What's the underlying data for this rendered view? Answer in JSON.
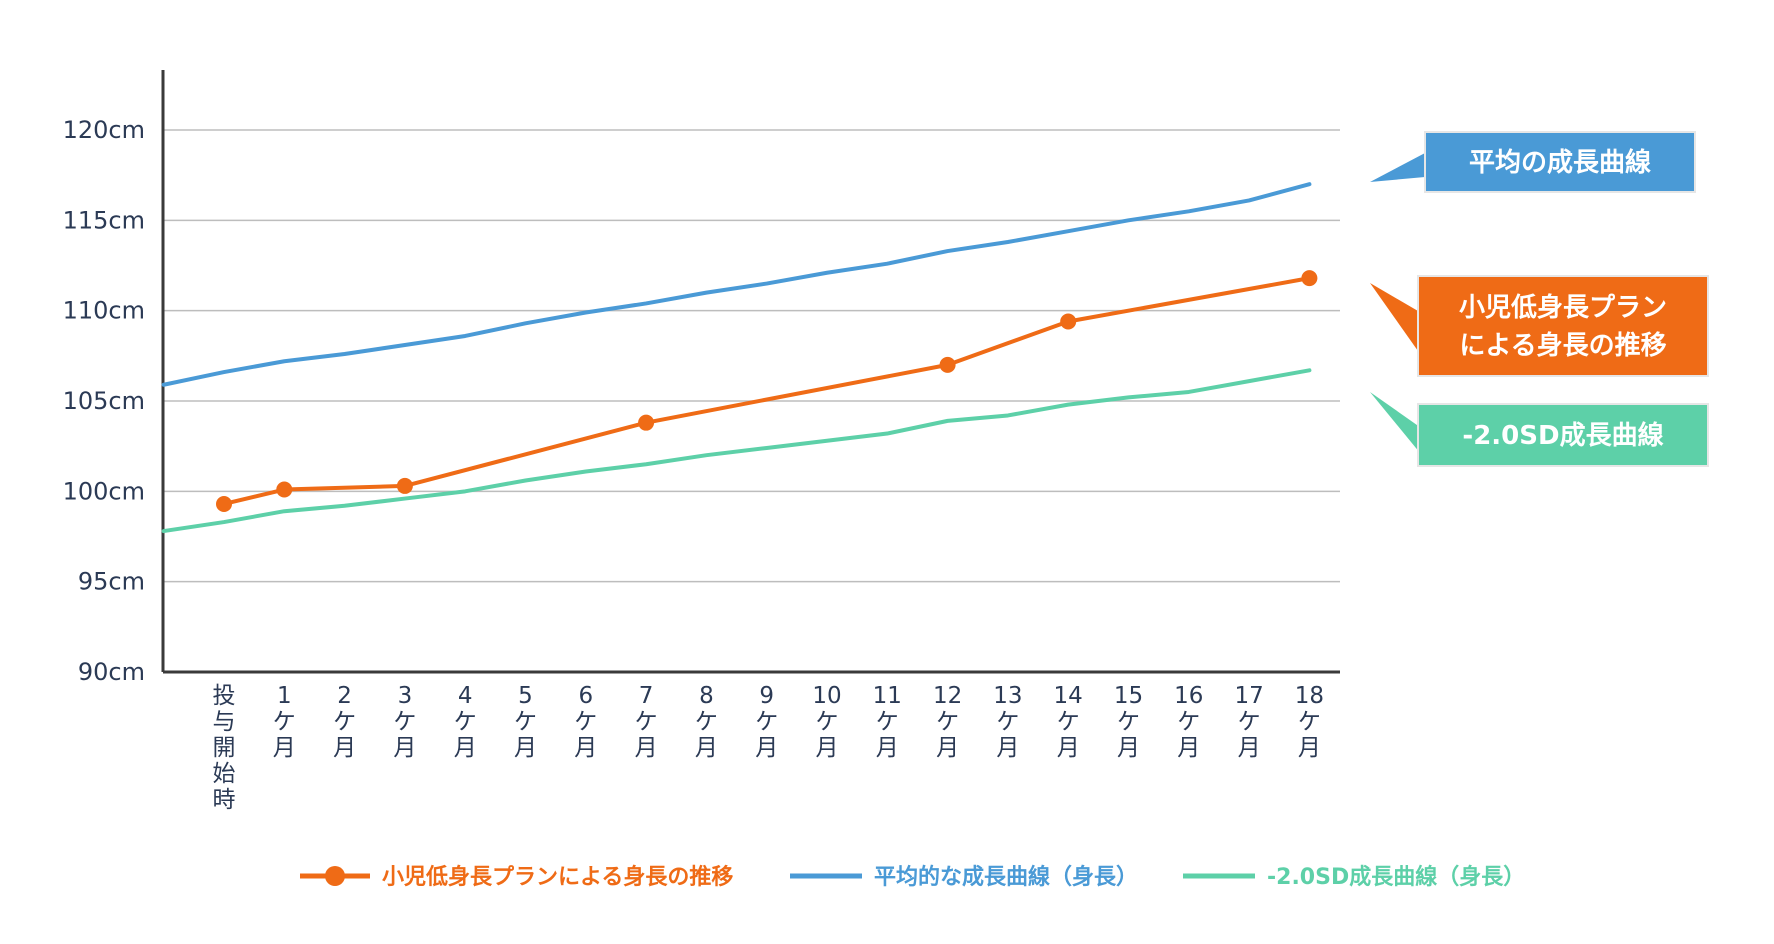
{
  "chart_data": {
    "type": "line",
    "title": "",
    "xlabel": "",
    "ylabel": "",
    "ylim": [
      90,
      123
    ],
    "grid": true,
    "y_ticks": [
      "90cm",
      "95cm",
      "100cm",
      "105cm",
      "110cm",
      "115cm",
      "120cm"
    ],
    "y_tick_values": [
      90,
      95,
      100,
      105,
      110,
      115,
      120
    ],
    "categories": [
      "投与開始時",
      "1ケ月",
      "2ケ月",
      "3ケ月",
      "4ケ月",
      "5ケ月",
      "6ケ月",
      "7ケ月",
      "8ケ月",
      "9ケ月",
      "10ケ月",
      "11ケ月",
      "12ケ月",
      "13ケ月",
      "14ケ月",
      "15ケ月",
      "16ケ月",
      "17ケ月",
      "18ケ月"
    ],
    "category_positions": [
      0,
      1,
      2,
      3,
      4,
      5,
      6,
      7,
      8,
      9,
      10,
      11,
      12,
      13,
      14,
      15,
      16,
      17,
      18
    ],
    "x_labels": [
      {
        "top": "",
        "lines": [
          "投",
          "与",
          "開",
          "始",
          "時"
        ]
      },
      {
        "top": "1",
        "lines": [
          "ケ",
          "月"
        ]
      },
      {
        "top": "2",
        "lines": [
          "ケ",
          "月"
        ]
      },
      {
        "top": "3",
        "lines": [
          "ケ",
          "月"
        ]
      },
      {
        "top": "4",
        "lines": [
          "ケ",
          "月"
        ]
      },
      {
        "top": "5",
        "lines": [
          "ケ",
          "月"
        ]
      },
      {
        "top": "6",
        "lines": [
          "ケ",
          "月"
        ]
      },
      {
        "top": "7",
        "lines": [
          "ケ",
          "月"
        ]
      },
      {
        "top": "8",
        "lines": [
          "ケ",
          "月"
        ]
      },
      {
        "top": "9",
        "lines": [
          "ケ",
          "月"
        ]
      },
      {
        "top": "10",
        "lines": [
          "ケ",
          "月"
        ]
      },
      {
        "top": "11",
        "lines": [
          "ケ",
          "月"
        ]
      },
      {
        "top": "12",
        "lines": [
          "ケ",
          "月"
        ]
      },
      {
        "top": "13",
        "lines": [
          "ケ",
          "月"
        ]
      },
      {
        "top": "14",
        "lines": [
          "ケ",
          "月"
        ]
      },
      {
        "top": "15",
        "lines": [
          "ケ",
          "月"
        ]
      },
      {
        "top": "16",
        "lines": [
          "ケ",
          "月"
        ]
      },
      {
        "top": "17",
        "lines": [
          "ケ",
          "月"
        ]
      },
      {
        "top": "18",
        "lines": [
          "ケ",
          "月"
        ]
      }
    ],
    "series": [
      {
        "name": "平均的な成長曲線（身長）",
        "color": "#4a9ad6",
        "markers": false,
        "x": [
          -1,
          0,
          1,
          2,
          3,
          4,
          5,
          6,
          7,
          8,
          9,
          10,
          11,
          12,
          13,
          14,
          15,
          16,
          17,
          18
        ],
        "values": [
          105.9,
          106.6,
          107.2,
          107.6,
          108.1,
          108.6,
          109.3,
          109.9,
          110.4,
          111.0,
          111.5,
          112.1,
          112.6,
          113.3,
          113.8,
          114.4,
          115.0,
          115.5,
          116.1,
          117.0
        ]
      },
      {
        "name": "小児低身長プランによる身長の推移",
        "color": "#ef6b16",
        "markers": true,
        "x": [
          0,
          1,
          3,
          7,
          12,
          14,
          18
        ],
        "values": [
          99.3,
          100.1,
          100.3,
          103.8,
          107.0,
          109.4,
          111.8
        ]
      },
      {
        "name": "-2.0SD成長曲線（身長）",
        "color": "#5dd0a8",
        "markers": false,
        "x": [
          -1,
          0,
          1,
          2,
          3,
          4,
          5,
          6,
          7,
          8,
          9,
          10,
          11,
          12,
          13,
          14,
          15,
          16,
          17,
          18
        ],
        "values": [
          97.8,
          98.3,
          98.9,
          99.2,
          99.6,
          100.0,
          100.6,
          101.1,
          101.5,
          102.0,
          102.4,
          102.8,
          103.2,
          103.9,
          104.2,
          104.8,
          105.2,
          105.5,
          106.1,
          106.7
        ]
      }
    ],
    "callouts": [
      {
        "lines": [
          "平均の成長曲線"
        ],
        "color": "#4a9ad6",
        "series": 0
      },
      {
        "lines": [
          "小児低身長プラン",
          "による身長の推移"
        ],
        "color": "#ef6b16",
        "series": 1
      },
      {
        "lines": [
          "-2.0SD成長曲線"
        ],
        "color": "#5dd0a8",
        "series": 2
      }
    ],
    "legend": {
      "placement": "bottom",
      "items": [
        {
          "label": "小児低身長プランによる身長の推移",
          "series": 1
        },
        {
          "label": "平均的な成長曲線（身長）",
          "series": 0
        },
        {
          "label": "-2.0SD成長曲線（身長）",
          "series": 2
        }
      ]
    },
    "axis_color": "#3a3a3a",
    "grid_color": "#bdbdbd",
    "label_color": "#2b3a55"
  }
}
